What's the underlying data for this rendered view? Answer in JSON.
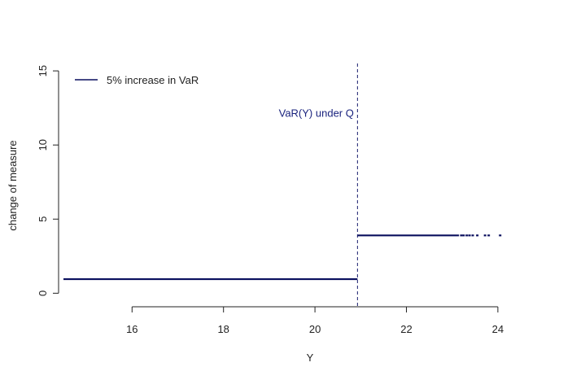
{
  "chart_data": {
    "type": "line",
    "xlabel": "Y",
    "ylabel": "change of measure",
    "xlim": [
      14.5,
      24.5
    ],
    "ylim": [
      -0.2,
      15.5
    ],
    "xticks": [
      16,
      18,
      20,
      22,
      24
    ],
    "yticks": [
      0,
      5,
      10,
      15
    ],
    "grid": false,
    "legend": {
      "position": "top-left",
      "entries": [
        {
          "label": "5% increase in VaR"
        }
      ]
    },
    "colors": {
      "line": "#0a0f5e",
      "vline": "#1a1f6e",
      "annotation": "#1a237e"
    },
    "series": [
      {
        "label": "5% increase in VaR",
        "segments": [
          {
            "x": [
              14.5,
              20.93
            ],
            "y": [
              0.95,
              0.95
            ]
          },
          {
            "x": [
              20.93,
              23.15
            ],
            "y": [
              3.9,
              3.9
            ]
          }
        ],
        "tail_points": {
          "x": [
            23.2,
            23.25,
            23.32,
            23.38,
            23.45,
            23.55,
            23.72,
            23.8,
            24.05
          ],
          "y": [
            3.9,
            3.9,
            3.9,
            3.9,
            3.9,
            3.9,
            3.9,
            3.9,
            3.9
          ]
        }
      }
    ],
    "vline": {
      "x": 20.93,
      "style": "dashed"
    },
    "annotations": [
      {
        "text": "VaR(Y) under Q",
        "x": 20.85,
        "y": 11.9
      }
    ]
  }
}
